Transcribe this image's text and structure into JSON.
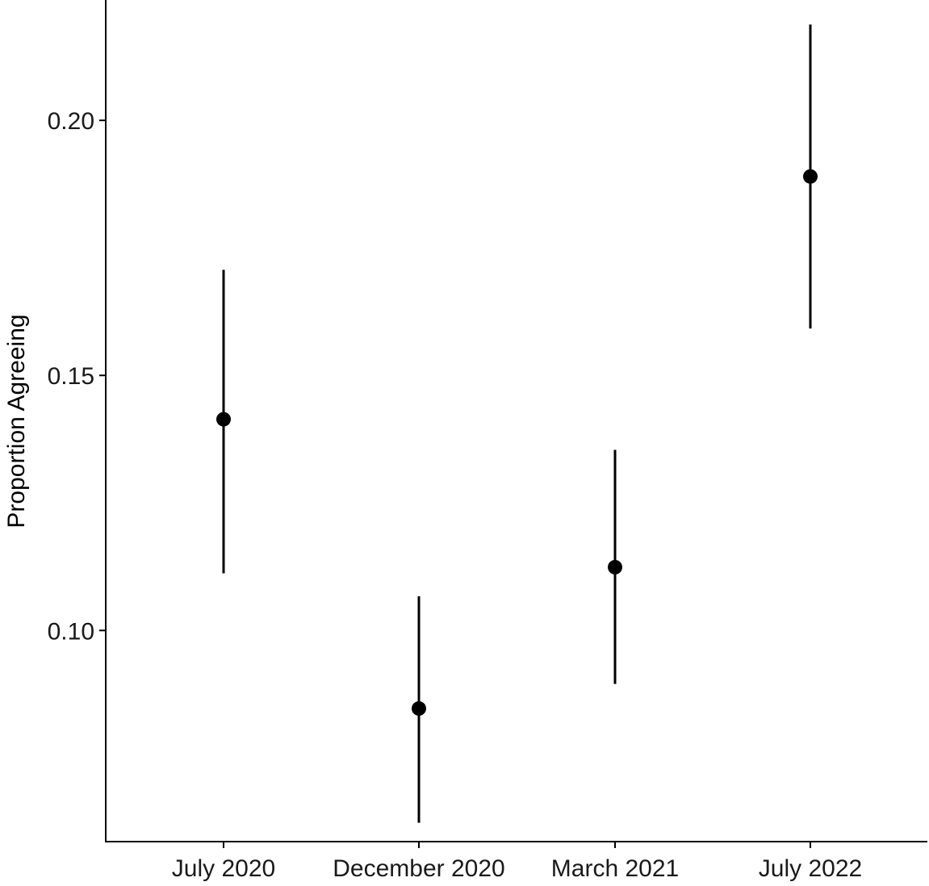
{
  "chart_data": {
    "type": "scatter",
    "subtype": "point-with-error-bars",
    "title": "",
    "xlabel": "",
    "ylabel": "Proportion Agreeing",
    "categories": [
      "July 2020",
      "December 2020",
      "March 2021",
      "July 2022"
    ],
    "values": [
      0.1414,
      0.0847,
      0.1124,
      0.189
    ],
    "lower": [
      0.1112,
      0.0623,
      0.0895,
      0.1592
    ],
    "upper": [
      0.1707,
      0.1067,
      0.1354,
      0.2188
    ],
    "yticks": [
      0.1,
      0.15,
      0.2
    ],
    "ytick_labels": [
      "0.10",
      "0.15",
      "0.20"
    ],
    "ylim": [
      0.0586,
      0.2236
    ],
    "grid": false,
    "legend": "none",
    "colors": {
      "point": "#000000",
      "axis": "#000000",
      "text": "#1a1a1a"
    }
  }
}
